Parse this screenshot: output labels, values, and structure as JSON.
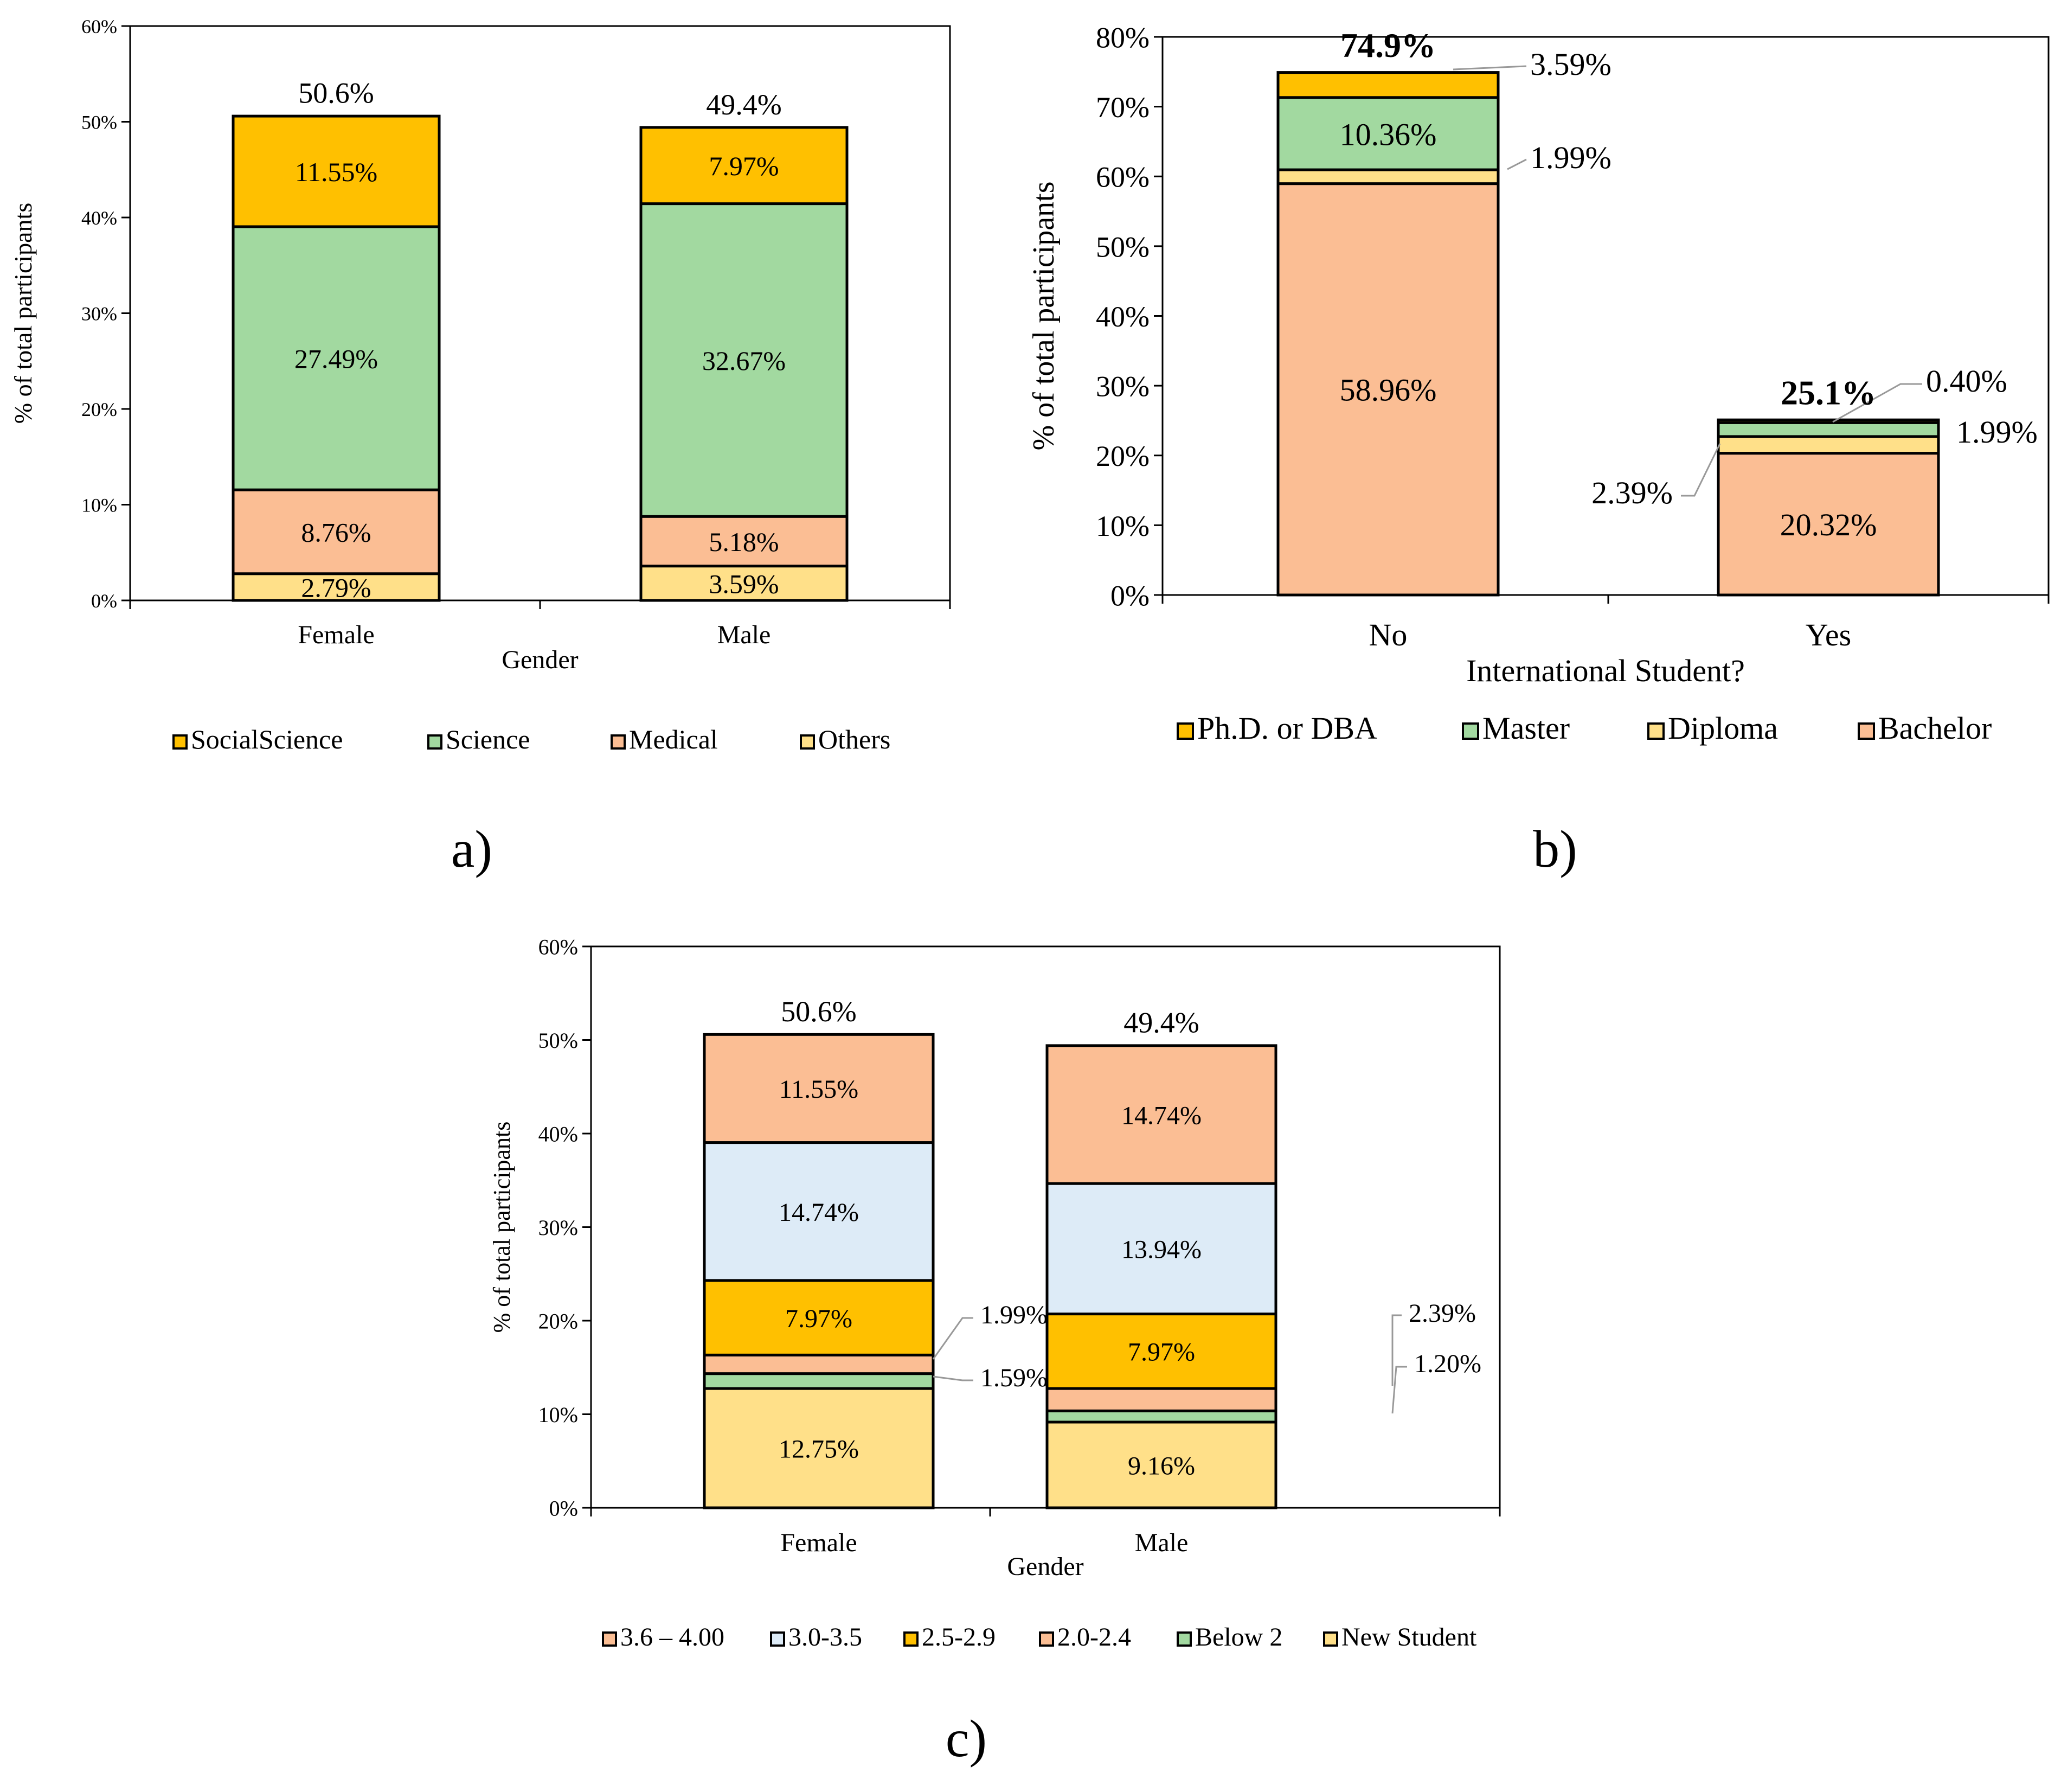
{
  "panel_labels": [
    "a)",
    "b)",
    "c)"
  ],
  "colors": {
    "social_science": "#FFC000",
    "science": "#A2D9A0",
    "medical": "#FBBE94",
    "others": "#FFE089",
    "phd": "#FFC000",
    "master": "#A2D9A0",
    "diploma": "#FFE089",
    "bachelor": "#FBBE94",
    "gpa_36_40": "#FBBE94",
    "gpa_30_35": "#DDEBF7",
    "gpa_25_29": "#FFC000",
    "gpa_20_24": "#FBBE94",
    "below_2": "#A2D9A0",
    "new_student": "#FFE089",
    "axis": "#000000",
    "leader": "#999999"
  },
  "chart_data": [
    {
      "id": "a",
      "type": "bar",
      "stacked": true,
      "title": "",
      "xlabel": "Gender",
      "ylabel": "% of total participants",
      "ylim": [
        0,
        60
      ],
      "yticks": [
        "0%",
        "10%",
        "20%",
        "30%",
        "40%",
        "50%",
        "60%"
      ],
      "categories": [
        "Female",
        "Male"
      ],
      "totals": [
        50.6,
        49.4
      ],
      "total_labels": [
        "50.6%",
        "49.4%"
      ],
      "series": [
        {
          "name": "Others",
          "color_key": "others",
          "values": [
            2.79,
            3.59
          ],
          "labels": [
            "2.79%",
            "3.59%"
          ]
        },
        {
          "name": "Medical",
          "color_key": "medical",
          "values": [
            8.76,
            5.18
          ],
          "labels": [
            "8.76%",
            "5.18%"
          ]
        },
        {
          "name": "Science",
          "color_key": "science",
          "values": [
            27.49,
            32.67
          ],
          "labels": [
            "27.49%",
            "32.67%"
          ]
        },
        {
          "name": "SocialScience",
          "color_key": "social_science",
          "values": [
            11.55,
            7.97
          ],
          "labels": [
            "11.55%",
            "7.97%"
          ]
        }
      ],
      "legend": [
        "SocialScience",
        "Science",
        "Medical",
        "Others"
      ],
      "legend_placement": "bottom"
    },
    {
      "id": "b",
      "type": "bar",
      "stacked": true,
      "title": "",
      "xlabel": "International Student?",
      "ylabel": "% of total participants",
      "ylim": [
        0,
        80
      ],
      "yticks": [
        "0%",
        "10%",
        "20%",
        "30%",
        "40%",
        "50%",
        "60%",
        "70%",
        "80%"
      ],
      "categories": [
        "No",
        "Yes"
      ],
      "totals": [
        74.9,
        25.1
      ],
      "total_labels": [
        "74.9%",
        "25.1%"
      ],
      "series": [
        {
          "name": "Bachelor",
          "color_key": "bachelor",
          "values": [
            58.96,
            20.32
          ],
          "labels": [
            "58.96%",
            "20.32%"
          ]
        },
        {
          "name": "Diploma",
          "color_key": "diploma",
          "values": [
            1.99,
            2.39
          ],
          "labels": [
            "1.99%",
            "2.39%"
          ]
        },
        {
          "name": "Master",
          "color_key": "master",
          "values": [
            10.36,
            1.99
          ],
          "labels": [
            "10.36%",
            "1.99%"
          ]
        },
        {
          "name": "Ph.D. or DBA",
          "color_key": "phd",
          "values": [
            3.59,
            0.4
          ],
          "labels": [
            "3.59%",
            "0.40%"
          ]
        }
      ],
      "legend": [
        "Ph.D. or DBA",
        "Master",
        "Diploma",
        "Bachelor"
      ],
      "legend_placement": "bottom"
    },
    {
      "id": "c",
      "type": "bar",
      "stacked": true,
      "title": "",
      "xlabel": "Gender",
      "ylabel": "% of total participants",
      "ylim": [
        0,
        60
      ],
      "yticks": [
        "0%",
        "10%",
        "20%",
        "30%",
        "40%",
        "50%",
        "60%"
      ],
      "categories": [
        "Female",
        "Male"
      ],
      "totals": [
        50.6,
        49.4
      ],
      "total_labels": [
        "50.6%",
        "49.4%"
      ],
      "series": [
        {
          "name": "New Student",
          "color_key": "new_student",
          "values": [
            12.75,
            9.16
          ],
          "labels": [
            "12.75%",
            "9.16%"
          ]
        },
        {
          "name": "Below 2",
          "color_key": "below_2",
          "values": [
            1.59,
            1.2
          ],
          "labels": [
            "1.59%",
            "1.20%"
          ]
        },
        {
          "name": "2.0-2.4",
          "color_key": "gpa_20_24",
          "values": [
            1.99,
            2.39
          ],
          "labels": [
            "1.99%",
            "2.39%"
          ]
        },
        {
          "name": "2.5-2.9",
          "color_key": "gpa_25_29",
          "values": [
            7.97,
            7.97
          ],
          "labels": [
            "7.97%",
            "7.97%"
          ]
        },
        {
          "name": "3.0-3.5",
          "color_key": "gpa_30_35",
          "values": [
            14.74,
            13.94
          ],
          "labels": [
            "14.74%",
            "13.94%"
          ]
        },
        {
          "name": "3.6 – 4.00",
          "color_key": "gpa_36_40",
          "values": [
            11.55,
            14.74
          ],
          "labels": [
            "11.55%",
            "14.74%"
          ]
        }
      ],
      "legend": [
        "3.6 – 4.00",
        "3.0-3.5",
        "2.5-2.9",
        "2.0-2.4",
        "Below 2",
        "New Student"
      ],
      "legend_placement": "bottom"
    }
  ]
}
